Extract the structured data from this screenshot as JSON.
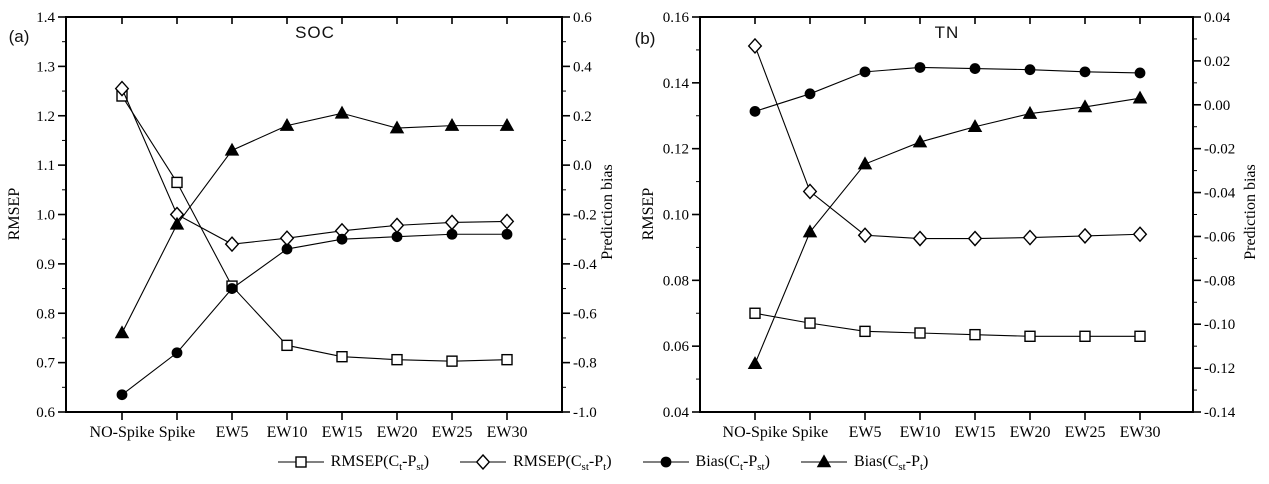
{
  "figure": {
    "background": "#ffffff",
    "ink": "#000000"
  },
  "legend": {
    "items": [
      {
        "key": "rmsep-ct-pst",
        "marker": "square-open",
        "parts": [
          {
            "text": "RMSEP(C"
          },
          {
            "sub": "t"
          },
          {
            "text": "-P"
          },
          {
            "sub": "st"
          },
          {
            "text": ")"
          }
        ]
      },
      {
        "key": "rmsep-cst-pt",
        "marker": "diamond-open",
        "parts": [
          {
            "text": "RMSEP(C"
          },
          {
            "sub": "st"
          },
          {
            "text": "-P"
          },
          {
            "sub": "t"
          },
          {
            "text": ")"
          }
        ]
      },
      {
        "key": "bias-ct-pst",
        "marker": "circle-filled",
        "parts": [
          {
            "text": "Bias(C"
          },
          {
            "sub": "t"
          },
          {
            "text": "-P"
          },
          {
            "sub": "st"
          },
          {
            "text": ")"
          }
        ]
      },
      {
        "key": "bias-cst-pt",
        "marker": "triangle-filled",
        "parts": [
          {
            "text": "Bias(C"
          },
          {
            "sub": "st"
          },
          {
            "text": "-P"
          },
          {
            "sub": "t"
          },
          {
            "text": ")"
          }
        ]
      }
    ]
  },
  "chart_data": [
    {
      "type": "line",
      "panel_label": "(a)",
      "title": "SOC",
      "categories": [
        "NO-Spike",
        "Spike",
        "EW5",
        "EW10",
        "EW15",
        "EW20",
        "EW25",
        "EW30"
      ],
      "left_axis": {
        "label": "RMSEP",
        "min": 0.6,
        "max": 1.4,
        "ticks": [
          "1.4",
          "1.3",
          "1.2",
          "1.1",
          "1.0",
          "0.9",
          "0.8",
          "0.7",
          "0.6"
        ]
      },
      "right_axis": {
        "label": "Prediction bias",
        "min": -1.0,
        "max": 0.6,
        "ticks": [
          "0.6",
          "0.4",
          "0.2",
          "0.0",
          "-0.2",
          "-0.4",
          "-0.6",
          "-0.8",
          "-1.0"
        ]
      },
      "series": [
        {
          "key": "rmsep-ct-pst",
          "name": "RMSEP(Ct-Pst)",
          "marker": "square-open",
          "axis": "left",
          "values": [
            1.24,
            1.065,
            0.855,
            0.735,
            0.712,
            0.706,
            0.703,
            0.706
          ]
        },
        {
          "key": "rmsep-cst-pt",
          "name": "RMSEP(Cst-Pt)",
          "marker": "diamond-open",
          "axis": "left",
          "values": [
            1.255,
            1.0,
            0.94,
            0.952,
            0.967,
            0.978,
            0.984,
            0.986
          ]
        },
        {
          "key": "bias-ct-pst",
          "name": "Bias(Ct-Pst)",
          "marker": "circle-filled",
          "axis": "right",
          "values": [
            -0.93,
            -0.76,
            -0.5,
            -0.34,
            -0.3,
            -0.29,
            -0.28,
            -0.28
          ]
        },
        {
          "key": "bias-cst-pt",
          "name": "Bias(Cst-Pt)",
          "marker": "triangle-filled",
          "axis": "right",
          "values": [
            -0.68,
            -0.24,
            0.06,
            0.16,
            0.21,
            0.15,
            0.16,
            0.16
          ]
        }
      ]
    },
    {
      "type": "line",
      "panel_label": "(b)",
      "title": "TN",
      "categories": [
        "NO-Spike",
        "Spike",
        "EW5",
        "EW10",
        "EW15",
        "EW20",
        "EW25",
        "EW30"
      ],
      "left_axis": {
        "label": "RMSEP",
        "min": 0.04,
        "max": 0.16,
        "ticks": [
          "0.16",
          "0.14",
          "0.12",
          "0.10",
          "0.08",
          "0.06",
          "0.04"
        ]
      },
      "right_axis": {
        "label": "Prediction bias",
        "min": -0.14,
        "max": 0.04,
        "ticks": [
          "0.04",
          "0.02",
          "0.00",
          "-0.02",
          "-0.04",
          "-0.06",
          "-0.08",
          "-0.10",
          "-0.12",
          "-0.14"
        ]
      },
      "series": [
        {
          "key": "rmsep-ct-pst",
          "name": "RMSEP(Ct-Pst)",
          "marker": "square-open",
          "axis": "left",
          "values": [
            0.07,
            0.067,
            0.0645,
            0.064,
            0.0635,
            0.063,
            0.063,
            0.063
          ]
        },
        {
          "key": "rmsep-cst-pt",
          "name": "RMSEP(Cst-Pt)",
          "marker": "diamond-open",
          "axis": "left",
          "values": [
            0.1512,
            0.107,
            0.0937,
            0.0927,
            0.0927,
            0.093,
            0.0935,
            0.094
          ]
        },
        {
          "key": "bias-ct-pst",
          "name": "Bias(Ct-Pst)",
          "marker": "circle-filled",
          "axis": "right",
          "values": [
            -0.003,
            0.005,
            0.015,
            0.017,
            0.0165,
            0.016,
            0.015,
            0.0145
          ]
        },
        {
          "key": "bias-cst-pt",
          "name": "Bias(Cst-Pt)",
          "marker": "triangle-filled",
          "axis": "right",
          "values": [
            -0.118,
            -0.058,
            -0.027,
            -0.017,
            -0.01,
            -0.004,
            -0.001,
            0.003
          ]
        }
      ]
    }
  ]
}
